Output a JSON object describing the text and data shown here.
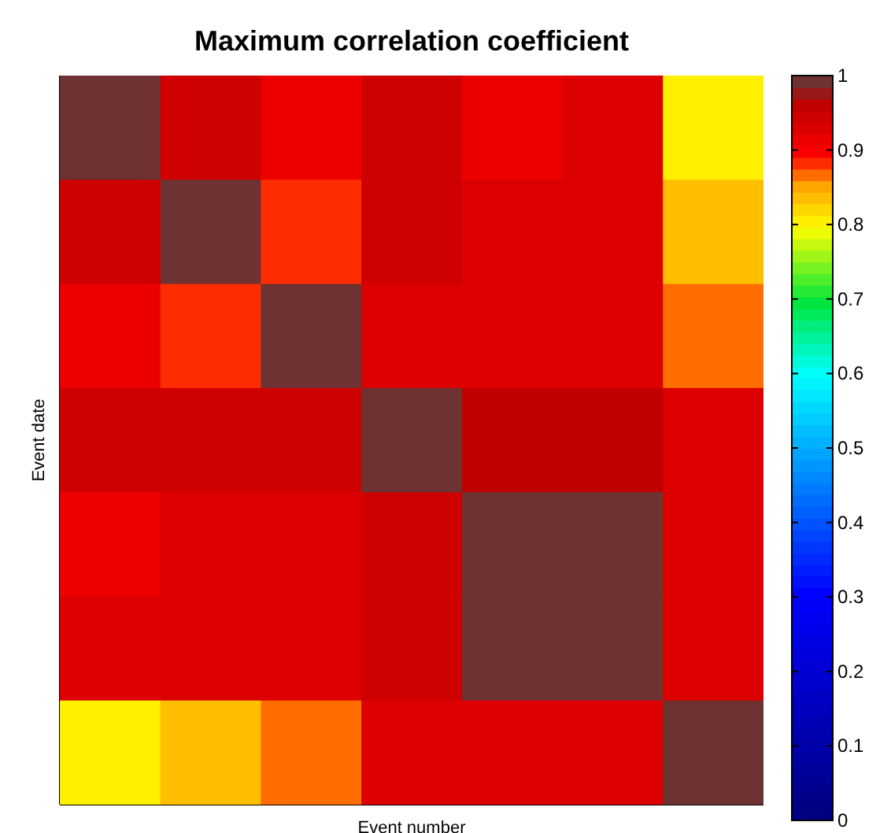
{
  "chart_data": {
    "type": "heatmap",
    "title": "Maximum correlation coefficient",
    "xlabel": "Event number",
    "ylabel": "Event date",
    "categories": [
      null,
      null,
      null,
      null,
      null,
      null,
      null
    ],
    "y_categories": [
      null,
      null,
      null,
      null,
      null,
      null,
      null
    ],
    "cells": [
      [
        1,
        0.94,
        0.91,
        0.95,
        0.91,
        0.93,
        0.81
      ],
      [
        0.94,
        1,
        0.88,
        0.95,
        0.93,
        0.93,
        0.83
      ],
      [
        0.91,
        0.88,
        1,
        0.93,
        0.93,
        0.93,
        0.86
      ],
      [
        0.95,
        0.95,
        0.94,
        1,
        0.96,
        0.96,
        0.93
      ],
      [
        0.91,
        0.93,
        0.93,
        0.95,
        1,
        1,
        0.93
      ],
      [
        0.93,
        0.93,
        0.93,
        0.95,
        1,
        1,
        0.93
      ],
      [
        0.81,
        0.83,
        0.86,
        0.93,
        0.93,
        0.93,
        1
      ]
    ],
    "clim": [
      0,
      1
    ],
    "cticks": [
      0,
      0.1,
      0.2,
      0.3,
      0.4,
      0.5,
      0.6,
      0.7,
      0.8,
      0.9,
      1
    ]
  }
}
